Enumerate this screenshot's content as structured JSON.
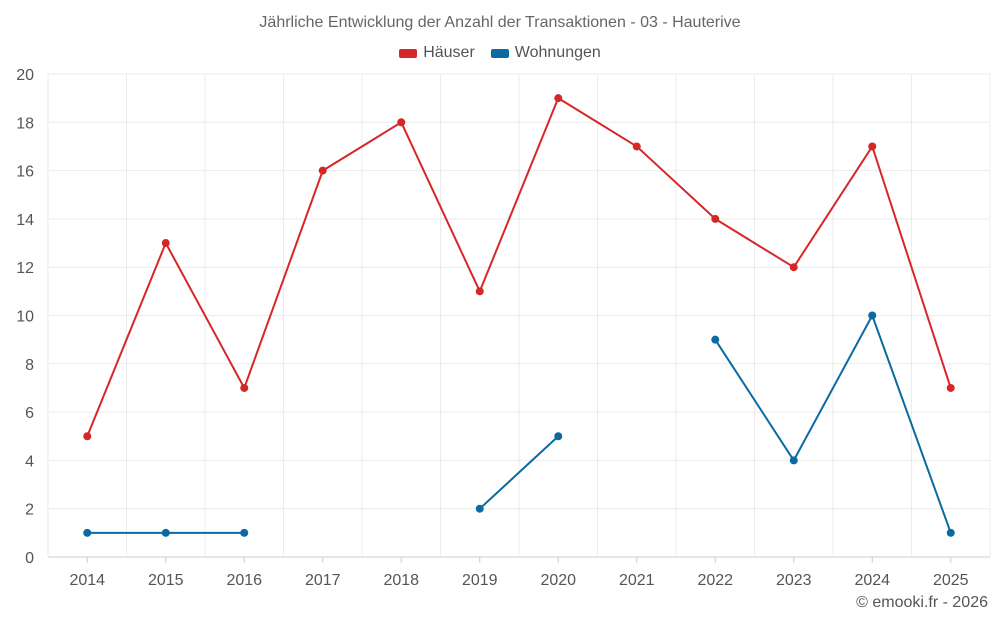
{
  "chart_data": {
    "type": "line",
    "title": "Jährliche Entwicklung der Anzahl der Transaktionen - 03 - Hauterive",
    "categories": [
      "2014",
      "2015",
      "2016",
      "2017",
      "2018",
      "2019",
      "2020",
      "2021",
      "2022",
      "2023",
      "2024",
      "2025"
    ],
    "ylim": [
      0,
      20
    ],
    "yticks": [
      "0",
      "2",
      "4",
      "6",
      "8",
      "10",
      "12",
      "14",
      "16",
      "18",
      "20"
    ],
    "grid": true,
    "legend_position": "top-center",
    "series": [
      {
        "name": "Häuser",
        "color": "#d62728",
        "values": [
          5,
          13,
          7,
          16,
          18,
          11,
          19,
          17,
          14,
          12,
          17,
          7
        ]
      },
      {
        "name": "Wohnungen",
        "color": "#0a6aa1",
        "values": [
          1,
          1,
          1,
          null,
          null,
          2,
          5,
          null,
          9,
          4,
          10,
          1
        ]
      }
    ]
  },
  "footer": {
    "copyright": "© emooki.fr - 2026"
  }
}
